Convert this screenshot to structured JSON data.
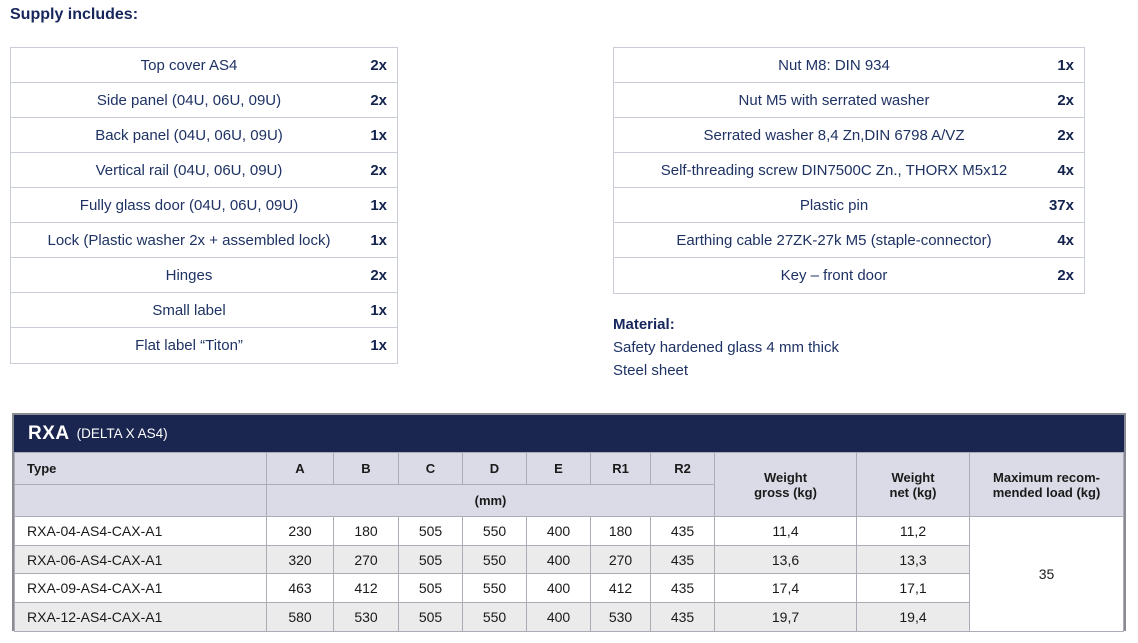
{
  "page": {
    "heading": "Supply includes:"
  },
  "colors": {
    "navy_bar": "#1a2650",
    "text_navy": "#1e3263",
    "text_navy_bold": "#13234d",
    "header_row_bg": "#dbdbe7",
    "alt_row_bg": "#ebebeb",
    "border_light": "#c9cdd8",
    "border_mid": "#abacb6",
    "border_outer": "#8b8b93"
  },
  "supply_left": {
    "rows": [
      {
        "item": "Top cover AS4",
        "qty": "2x"
      },
      {
        "item": "Side panel (04U, 06U, 09U)",
        "qty": "2x"
      },
      {
        "item": "Back panel (04U, 06U, 09U)",
        "qty": "1x"
      },
      {
        "item": "Vertical rail (04U, 06U, 09U)",
        "qty": "2x"
      },
      {
        "item": "Fully glass door (04U, 06U, 09U)",
        "qty": "1x"
      },
      {
        "item": "Lock (Plastic washer 2x + assembled lock)",
        "qty": "1x"
      },
      {
        "item": "Hinges",
        "qty": "2x"
      },
      {
        "item": "Small label",
        "qty": "1x"
      },
      {
        "item": "Flat label “Titon”",
        "qty": "1x"
      }
    ]
  },
  "supply_right": {
    "rows": [
      {
        "item": "Nut M8: DIN 934",
        "qty": "1x"
      },
      {
        "item": "Nut M5 with serrated washer",
        "qty": "2x"
      },
      {
        "item": "Serrated washer 8,4 Zn,DIN 6798 A/VZ",
        "qty": "2x"
      },
      {
        "item": "Self-threading screw DIN7500C Zn., THORX M5x12",
        "qty": "4x"
      },
      {
        "item": "Plastic pin",
        "qty": "37x"
      },
      {
        "item": "Earthing cable 27ZK-27k M5 (staple-connector)",
        "qty": "4x"
      },
      {
        "item": "Key – front door",
        "qty": "2x"
      }
    ]
  },
  "material": {
    "heading": "Material:",
    "lines": [
      "Safety hardened glass 4 mm thick",
      "Steel sheet"
    ]
  },
  "spec_table": {
    "title": "RXA",
    "subtitle": "(DELTA X AS4)",
    "headers": {
      "type": "Type",
      "dims": [
        "A",
        "B",
        "C",
        "D",
        "E",
        "R1",
        "R2"
      ],
      "unit": "(mm)",
      "weight_gross": [
        "Weight",
        "gross (kg)"
      ],
      "weight_net": [
        "Weight",
        "net (kg)"
      ],
      "max_load": [
        "Maximum recom-",
        "mended load (kg)"
      ]
    },
    "rows": [
      {
        "type": "RXA-04-AS4-CAX-A1",
        "a": "230",
        "b": "180",
        "c": "505",
        "d": "550",
        "e": "400",
        "r1": "180",
        "r2": "435",
        "gross": "11,4",
        "net": "11,2"
      },
      {
        "type": "RXA-06-AS4-CAX-A1",
        "a": "320",
        "b": "270",
        "c": "505",
        "d": "550",
        "e": "400",
        "r1": "270",
        "r2": "435",
        "gross": "13,6",
        "net": "13,3"
      },
      {
        "type": "RXA-09-AS4-CAX-A1",
        "a": "463",
        "b": "412",
        "c": "505",
        "d": "550",
        "e": "400",
        "r1": "412",
        "r2": "435",
        "gross": "17,4",
        "net": "17,1"
      },
      {
        "type": "RXA-12-AS4-CAX-A1",
        "a": "580",
        "b": "530",
        "c": "505",
        "d": "550",
        "e": "400",
        "r1": "530",
        "r2": "435",
        "gross": "19,7",
        "net": "19,4"
      }
    ],
    "max_load_value": "35"
  }
}
